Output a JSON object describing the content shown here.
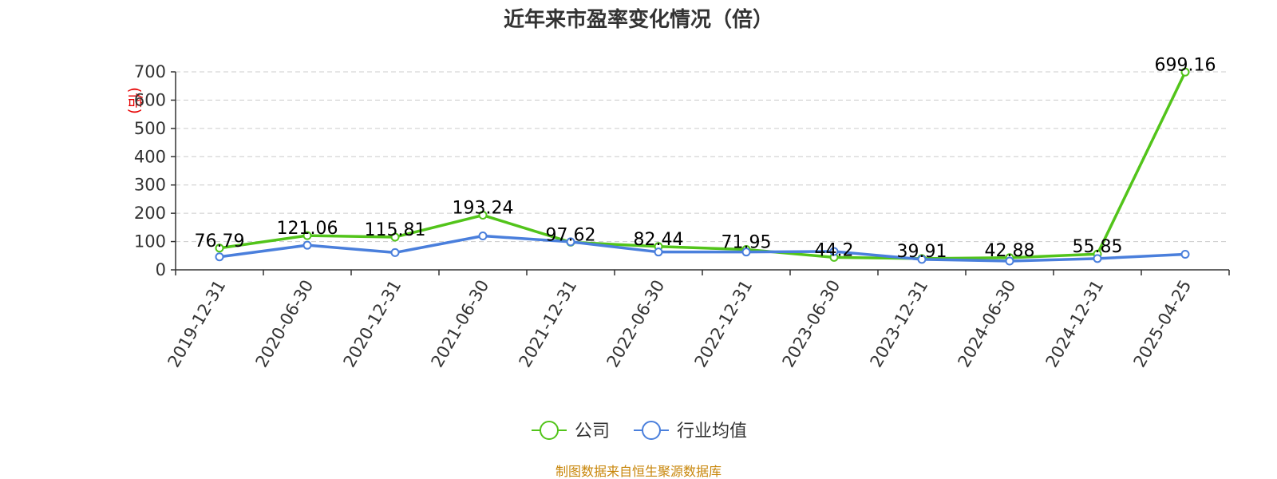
{
  "chart_data": {
    "type": "line",
    "title": "近年来市盈率变化情况（倍）",
    "ylabel": "(倍)",
    "ylim": [
      0,
      700
    ],
    "yticks": [
      "0",
      "100",
      "200",
      "300",
      "400",
      "500",
      "600",
      "700"
    ],
    "grid": true,
    "legend_position": "bottom",
    "categories": [
      "2019-12-31",
      "2020-06-30",
      "2020-12-31",
      "2021-06-30",
      "2021-12-31",
      "2022-06-30",
      "2022-12-31",
      "2023-06-30",
      "2023-12-31",
      "2024-06-30",
      "2024-12-31",
      "2025-04-25"
    ],
    "series": [
      {
        "name": "公司",
        "color": "#52c41a",
        "values": [
          76.79,
          121.06,
          115.81,
          193.24,
          97.62,
          82.44,
          71.95,
          44.2,
          39.91,
          42.88,
          55.85,
          699.16
        ],
        "labels": [
          "76.79",
          "121.06",
          "115.81",
          "193.24",
          "97.62",
          "82.44",
          "71.95",
          "44.2",
          "39.91",
          "42.88",
          "55.85",
          "699.16"
        ]
      },
      {
        "name": "行业均值",
        "color": "#4a7fdc",
        "values": [
          46,
          87,
          61,
          120,
          99,
          63,
          63,
          65,
          37,
          31,
          40,
          55
        ]
      }
    ]
  },
  "footer": {
    "source": "制图数据来自恒生聚源数据库"
  }
}
